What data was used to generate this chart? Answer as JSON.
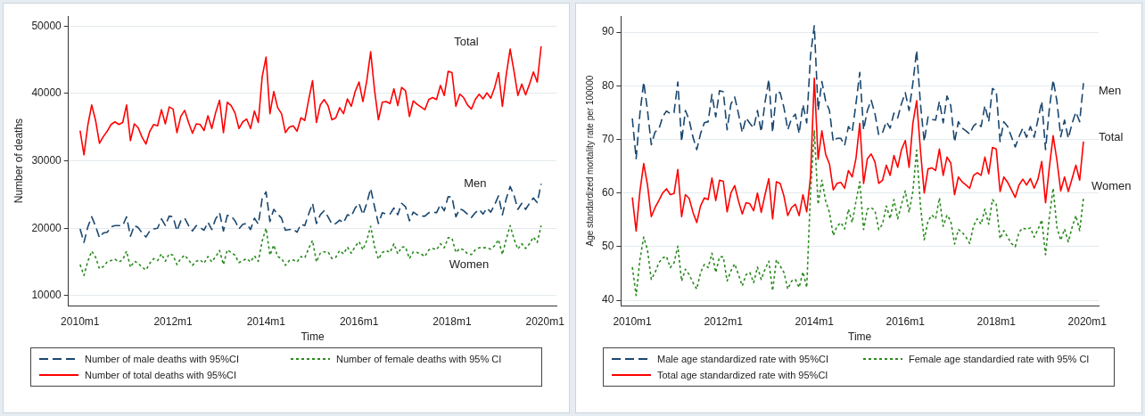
{
  "chart_data": [
    {
      "type": "line",
      "xlabel": "Time",
      "ylabel": "Number of deaths",
      "x": [
        "2010-01",
        "2010-02",
        "2010-03",
        "2010-04",
        "2010-05",
        "2010-06",
        "2010-07",
        "2010-08",
        "2010-09",
        "2010-10",
        "2010-11",
        "2010-12",
        "2011-01",
        "2011-02",
        "2011-03",
        "2011-04",
        "2011-05",
        "2011-06",
        "2011-07",
        "2011-08",
        "2011-09",
        "2011-10",
        "2011-11",
        "2011-12",
        "2012-01",
        "2012-02",
        "2012-03",
        "2012-04",
        "2012-05",
        "2012-06",
        "2012-07",
        "2012-08",
        "2012-09",
        "2012-10",
        "2012-11",
        "2012-12",
        "2013-01",
        "2013-02",
        "2013-03",
        "2013-04",
        "2013-05",
        "2013-06",
        "2013-07",
        "2013-08",
        "2013-09",
        "2013-10",
        "2013-11",
        "2013-12",
        "2014-01",
        "2014-02",
        "2014-03",
        "2014-04",
        "2014-05",
        "2014-06",
        "2014-07",
        "2014-08",
        "2014-09",
        "2014-10",
        "2014-11",
        "2014-12",
        "2015-01",
        "2015-02",
        "2015-03",
        "2015-04",
        "2015-05",
        "2015-06",
        "2015-07",
        "2015-08",
        "2015-09",
        "2015-10",
        "2015-11",
        "2015-12",
        "2016-01",
        "2016-02",
        "2016-03",
        "2016-04",
        "2016-05",
        "2016-06",
        "2016-07",
        "2016-08",
        "2016-09",
        "2016-10",
        "2016-11",
        "2016-12",
        "2017-01",
        "2017-02",
        "2017-03",
        "2017-04",
        "2017-05",
        "2017-06",
        "2017-07",
        "2017-08",
        "2017-09",
        "2017-10",
        "2017-11",
        "2017-12",
        "2018-01",
        "2018-02",
        "2018-03",
        "2018-04",
        "2018-05",
        "2018-06",
        "2018-07",
        "2018-08",
        "2018-09",
        "2018-10",
        "2018-11",
        "2018-12",
        "2019-01",
        "2019-02",
        "2019-03",
        "2019-04",
        "2019-05",
        "2019-06",
        "2019-07",
        "2019-08",
        "2019-09",
        "2019-10",
        "2019-11",
        "2019-12"
      ],
      "series": [
        {
          "name": "Number of male deaths with 95%CI",
          "color": "#1a476f",
          "line_style": "dashed",
          "values": [
            19900,
            17900,
            20200,
            21700,
            20300,
            18600,
            19300,
            19400,
            20200,
            20400,
            20400,
            20400,
            21700,
            18800,
            20400,
            20100,
            19300,
            18700,
            19600,
            19900,
            20000,
            21400,
            20400,
            21800,
            21700,
            19600,
            21100,
            21500,
            20400,
            19600,
            20400,
            20100,
            19700,
            20900,
            19800,
            21400,
            22300,
            19600,
            21900,
            21800,
            21100,
            19900,
            20600,
            20700,
            19800,
            21500,
            20600,
            24400,
            25400,
            21000,
            22800,
            22100,
            21500,
            19700,
            19800,
            19900,
            19400,
            20600,
            20400,
            22100,
            23700,
            20700,
            22000,
            22600,
            21700,
            20600,
            20700,
            21200,
            20800,
            22000,
            21800,
            23000,
            23700,
            22000,
            23700,
            25900,
            23200,
            20700,
            22300,
            22100,
            22100,
            23000,
            22000,
            23700,
            23200,
            21100,
            22400,
            22000,
            21800,
            21800,
            22300,
            22400,
            22300,
            23500,
            22600,
            24700,
            24600,
            21700,
            22900,
            22600,
            22100,
            21600,
            22300,
            22800,
            22100,
            23000,
            22400,
            23500,
            24800,
            22000,
            24400,
            26200,
            24900,
            22800,
            23700,
            22800,
            23700,
            24500,
            23800,
            26600
          ]
        },
        {
          "name": "Number of female deaths with 95% CI",
          "color": "#2a8a1e",
          "line_style": "dotted",
          "values": [
            14600,
            13000,
            15100,
            16600,
            15700,
            14000,
            14300,
            15000,
            15200,
            15400,
            15000,
            15300,
            16600,
            14200,
            15100,
            14800,
            14200,
            13800,
            14800,
            15500,
            15200,
            16200,
            15100,
            16200,
            16000,
            14600,
            15500,
            16000,
            15300,
            14500,
            15100,
            15300,
            14800,
            15800,
            15000,
            15800,
            16700,
            14600,
            16800,
            16400,
            16000,
            14900,
            15200,
            15500,
            15000,
            15900,
            15100,
            18100,
            20000,
            16000,
            17500,
            15800,
            15500,
            14500,
            15200,
            15300,
            15000,
            15800,
            15600,
            17000,
            18200,
            15000,
            16300,
            16500,
            16500,
            15500,
            15700,
            16700,
            16200,
            17200,
            16300,
            17300,
            18000,
            16800,
            18200,
            20300,
            17300,
            15400,
            16400,
            16700,
            16400,
            17700,
            16200,
            17200,
            17200,
            15500,
            16500,
            16400,
            16200,
            15800,
            16800,
            17000,
            16800,
            17700,
            17100,
            18600,
            18500,
            16400,
            17000,
            16800,
            16200,
            16100,
            16800,
            17100,
            17100,
            17100,
            16900,
            17400,
            18300,
            16100,
            18400,
            20400,
            18400,
            16900,
            17700,
            17000,
            17700,
            18700,
            17900,
            20400
          ]
        },
        {
          "name": "Number of total deaths with 95%CI",
          "color": "#ff0000",
          "line_style": "solid",
          "values": [
            34500,
            30900,
            35300,
            38300,
            36000,
            32600,
            33600,
            34400,
            35400,
            35800,
            35400,
            35700,
            38300,
            33000,
            35500,
            34900,
            33500,
            32500,
            34400,
            35400,
            35200,
            37600,
            35500,
            38000,
            37700,
            34200,
            36600,
            37500,
            35700,
            34100,
            35500,
            35400,
            34500,
            36700,
            34800,
            37200,
            39000,
            34200,
            38700,
            38200,
            37100,
            34800,
            35800,
            36200,
            34800,
            37400,
            35700,
            42500,
            45400,
            37000,
            40300,
            37900,
            37000,
            34200,
            35000,
            35200,
            34400,
            36400,
            36000,
            39100,
            41900,
            35700,
            38300,
            39100,
            38200,
            36100,
            36400,
            37900,
            37000,
            39200,
            38100,
            40300,
            41700,
            38800,
            41900,
            46200,
            40500,
            36100,
            38700,
            38800,
            38500,
            40700,
            38200,
            40900,
            40400,
            36600,
            38900,
            38400,
            38000,
            37600,
            39100,
            39400,
            39100,
            41200,
            39700,
            43300,
            43100,
            38100,
            39900,
            39400,
            38300,
            37700,
            39100,
            39900,
            39200,
            40100,
            39300,
            40900,
            43100,
            38100,
            42800,
            46600,
            43300,
            39700,
            41400,
            39800,
            41400,
            43200,
            41700,
            47000
          ]
        }
      ],
      "xlim": [
        "2009-10",
        "2020-04"
      ],
      "xticks": [
        {
          "value": "2010-01",
          "label": "2010m1"
        },
        {
          "value": "2012-01",
          "label": "2012m1"
        },
        {
          "value": "2014-01",
          "label": "2014m1"
        },
        {
          "value": "2016-01",
          "label": "2016m1"
        },
        {
          "value": "2018-01",
          "label": "2018m1"
        },
        {
          "value": "2020-01",
          "label": "2020m1"
        }
      ],
      "ylim": [
        8500,
        51500
      ],
      "yticks": [
        10000,
        20000,
        30000,
        40000,
        50000
      ],
      "grid": "y",
      "legend": "bottom",
      "annotations": [
        "Total",
        "Men",
        "Women"
      ]
    },
    {
      "type": "line",
      "xlabel": "Time",
      "ylabel": "Age standardized mortality rate per 100000",
      "x": [
        "2010-01",
        "2010-02",
        "2010-03",
        "2010-04",
        "2010-05",
        "2010-06",
        "2010-07",
        "2010-08",
        "2010-09",
        "2010-10",
        "2010-11",
        "2010-12",
        "2011-01",
        "2011-02",
        "2011-03",
        "2011-04",
        "2011-05",
        "2011-06",
        "2011-07",
        "2011-08",
        "2011-09",
        "2011-10",
        "2011-11",
        "2011-12",
        "2012-01",
        "2012-02",
        "2012-03",
        "2012-04",
        "2012-05",
        "2012-06",
        "2012-07",
        "2012-08",
        "2012-09",
        "2012-10",
        "2012-11",
        "2012-12",
        "2013-01",
        "2013-02",
        "2013-03",
        "2013-04",
        "2013-05",
        "2013-06",
        "2013-07",
        "2013-08",
        "2013-09",
        "2013-10",
        "2013-11",
        "2013-12",
        "2014-01",
        "2014-02",
        "2014-03",
        "2014-04",
        "2014-05",
        "2014-06",
        "2014-07",
        "2014-08",
        "2014-09",
        "2014-10",
        "2014-11",
        "2014-12",
        "2015-01",
        "2015-02",
        "2015-03",
        "2015-04",
        "2015-05",
        "2015-06",
        "2015-07",
        "2015-08",
        "2015-09",
        "2015-10",
        "2015-11",
        "2015-12",
        "2016-01",
        "2016-02",
        "2016-03",
        "2016-04",
        "2016-05",
        "2016-06",
        "2016-07",
        "2016-08",
        "2016-09",
        "2016-10",
        "2016-11",
        "2016-12",
        "2017-01",
        "2017-02",
        "2017-03",
        "2017-04",
        "2017-05",
        "2017-06",
        "2017-07",
        "2017-08",
        "2017-09",
        "2017-10",
        "2017-11",
        "2017-12",
        "2018-01",
        "2018-02",
        "2018-03",
        "2018-04",
        "2018-05",
        "2018-06",
        "2018-07",
        "2018-08",
        "2018-09",
        "2018-10",
        "2018-11",
        "2018-12",
        "2019-01",
        "2019-02",
        "2019-03",
        "2019-04",
        "2019-05",
        "2019-06",
        "2019-07",
        "2019-08",
        "2019-09",
        "2019-10",
        "2019-11",
        "2019-12"
      ],
      "series": [
        {
          "name": "Male age standardized rate with 95%CI",
          "color": "#1a476f",
          "line_style": "dashed",
          "values": [
            73.9,
            66.4,
            74.8,
            80.7,
            75.4,
            69.0,
            71.4,
            71.9,
            74.2,
            75.3,
            74.8,
            75.0,
            80.7,
            69.6,
            75.4,
            73.6,
            70.4,
            68.1,
            71.1,
            73.1,
            73.3,
            78.4,
            74.2,
            79.1,
            78.9,
            71.8,
            76.6,
            77.9,
            74.8,
            71.3,
            74.0,
            73.0,
            72.1,
            75.4,
            71.4,
            76.9,
            81.2,
            71.3,
            78.9,
            78.7,
            75.9,
            71.8,
            73.9,
            74.7,
            71.1,
            76.5,
            73.1,
            85.6,
            91.2,
            75.4,
            80.8,
            77.1,
            75.4,
            69.6,
            70.2,
            70.2,
            68.9,
            72.4,
            71.4,
            76.7,
            82.5,
            71.8,
            75.4,
            77.3,
            74.8,
            70.8,
            71.3,
            73.3,
            72.1,
            74.9,
            74.0,
            76.7,
            78.7,
            75.4,
            80.5,
            86.6,
            76.6,
            69.6,
            74.2,
            73.7,
            73.6,
            77.1,
            73.1,
            78.1,
            76.3,
            69.5,
            73.3,
            72.1,
            71.6,
            71.0,
            72.5,
            73.1,
            72.4,
            76.3,
            73.3,
            79.5,
            79.0,
            69.6,
            73.3,
            72.4,
            70.5,
            68.6,
            70.5,
            72.1,
            70.4,
            72.4,
            70.4,
            73.7,
            77.1,
            68.1,
            75.7,
            81.1,
            77.1,
            70.5,
            73.6,
            70.2,
            73.0,
            75.1,
            73.3,
            80.5
          ]
        },
        {
          "name": "Female age standardied rate with 95% CI",
          "color": "#2a8a1e",
          "line_style": "dotted",
          "values": [
            46.2,
            40.9,
            47.6,
            51.8,
            49.4,
            43.9,
            45.2,
            47.0,
            47.9,
            48.2,
            46.1,
            47.0,
            50.1,
            43.6,
            45.8,
            44.8,
            43.3,
            42.1,
            45.2,
            46.7,
            46.1,
            48.8,
            45.2,
            48.1,
            48.1,
            43.6,
            45.5,
            46.8,
            44.8,
            42.7,
            44.8,
            45.2,
            43.3,
            46.2,
            43.9,
            45.8,
            47.3,
            41.8,
            47.6,
            46.4,
            45.2,
            42.1,
            43.6,
            43.9,
            42.4,
            45.3,
            42.4,
            60.0,
            71.6,
            57.9,
            62.4,
            58.5,
            56.4,
            52.1,
            53.8,
            54.5,
            53.3,
            57.0,
            54.5,
            58.5,
            62.1,
            53.2,
            57.0,
            57.3,
            56.7,
            53.2,
            54.2,
            57.6,
            55.2,
            58.8,
            55.2,
            57.9,
            60.4,
            56.4,
            60.3,
            68.0,
            57.6,
            51.3,
            54.8,
            55.9,
            55.2,
            59.1,
            53.8,
            55.9,
            54.8,
            50.5,
            53.2,
            52.7,
            51.8,
            50.6,
            53.9,
            55.2,
            54.2,
            57.0,
            54.2,
            58.8,
            57.9,
            51.5,
            53.0,
            51.8,
            50.6,
            50.0,
            52.7,
            53.5,
            53.2,
            53.5,
            51.8,
            53.2,
            55.0,
            48.5,
            55.5,
            60.9,
            53.6,
            51.2,
            53.3,
            50.9,
            53.6,
            55.8,
            53.0,
            59.1
          ]
        },
        {
          "name": "Total age standardized rate with 95%CI",
          "color": "#ff0000",
          "line_style": "solid",
          "values": [
            59.2,
            52.9,
            60.3,
            65.5,
            61.5,
            55.6,
            57.3,
            58.6,
            60.0,
            60.8,
            59.7,
            59.9,
            64.4,
            55.6,
            59.7,
            59.0,
            56.4,
            54.5,
            57.6,
            59.1,
            58.8,
            62.8,
            58.6,
            62.4,
            62.2,
            56.5,
            60.0,
            61.4,
            58.5,
            56.1,
            58.2,
            58.0,
            56.7,
            60.0,
            56.4,
            59.7,
            62.7,
            55.2,
            62.1,
            61.8,
            59.4,
            55.8,
            57.3,
            57.9,
            55.8,
            59.7,
            56.5,
            63.0,
            81.4,
            66.3,
            71.6,
            67.2,
            65.4,
            60.6,
            61.8,
            62.0,
            60.9,
            64.2,
            63.0,
            66.5,
            73.0,
            61.8,
            66.4,
            67.3,
            65.8,
            61.8,
            62.4,
            65.2,
            63.3,
            67.0,
            64.8,
            68.1,
            69.8,
            64.8,
            73.0,
            77.2,
            68.0,
            60.0,
            64.5,
            64.7,
            64.2,
            68.2,
            63.3,
            66.7,
            65.6,
            59.7,
            63.0,
            62.1,
            61.5,
            60.9,
            63.3,
            63.8,
            63.3,
            66.7,
            63.6,
            68.5,
            68.2,
            60.3,
            63.0,
            62.0,
            60.6,
            59.2,
            61.5,
            62.6,
            61.5,
            62.7,
            60.9,
            62.6,
            65.9,
            58.2,
            64.8,
            70.7,
            66.1,
            60.4,
            63.0,
            60.3,
            62.7,
            65.2,
            62.4,
            69.6
          ]
        }
      ],
      "xlim": [
        "2009-10",
        "2020-04"
      ],
      "xticks": [
        {
          "value": "2010-01",
          "label": "2010m1"
        },
        {
          "value": "2012-01",
          "label": "2012m1"
        },
        {
          "value": "2014-01",
          "label": "2014m1"
        },
        {
          "value": "2016-01",
          "label": "2016m1"
        },
        {
          "value": "2018-01",
          "label": "2018m1"
        },
        {
          "value": "2020-01",
          "label": "2020m1"
        }
      ],
      "ylim": [
        39,
        93
      ],
      "yticks": [
        40,
        50,
        60,
        70,
        80,
        90
      ],
      "grid": "y",
      "legend": "bottom",
      "annotations": [
        "Men",
        "Total",
        "Women"
      ]
    }
  ]
}
